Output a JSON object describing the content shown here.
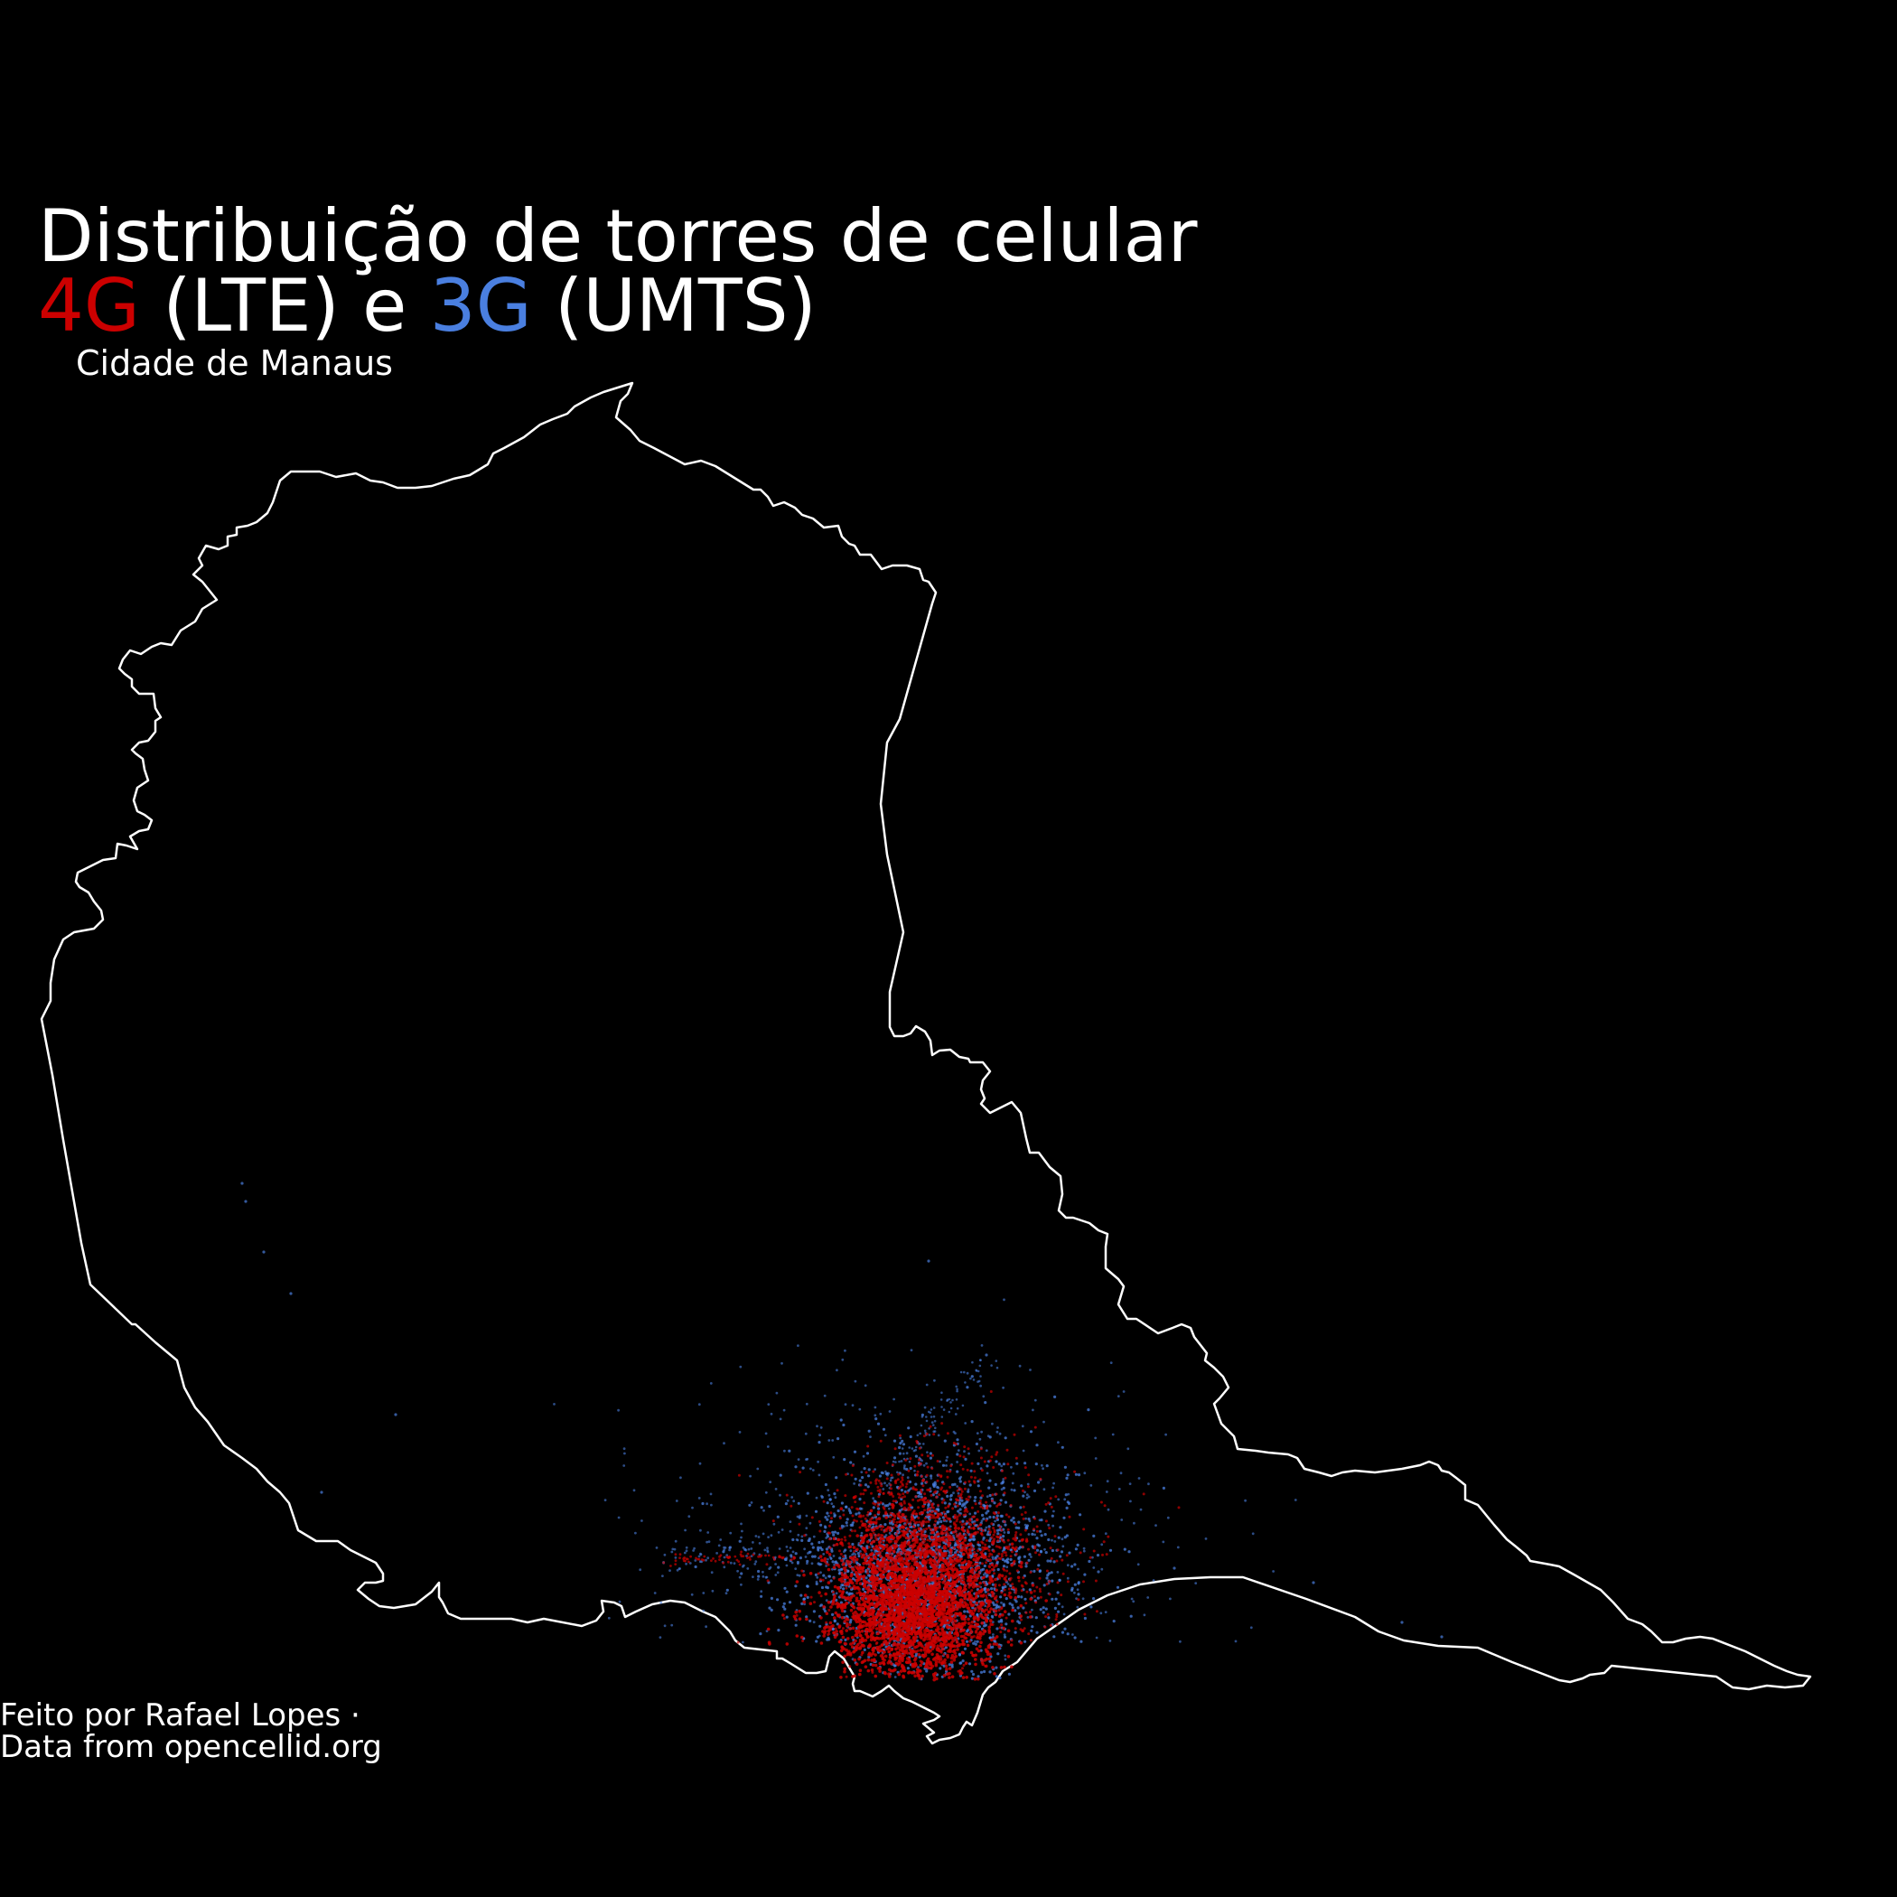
{
  "title": {
    "line1": "Distribuição de torres de celular",
    "line2": {
      "lte_code": "4G",
      "lte_name": " (LTE) e ",
      "umts_code": "3G",
      "umts_name": " (UMTS)"
    }
  },
  "subtitle": "Cidade de Manaus",
  "caption": {
    "line1": "Feito por Rafael Lopes ·",
    "line2": "Data from opencellid.org"
  },
  "colors": {
    "background": "#000000",
    "boundary": "#ffffff",
    "lte": "#cc0000",
    "umts": "#4a7fe0",
    "text": "#ffffff"
  },
  "map": {
    "region": "Manaus",
    "layers": [
      {
        "name": "4G (LTE)",
        "color_key": "lte"
      },
      {
        "name": "3G (UMTS)",
        "color_key": "umts"
      }
    ]
  }
}
